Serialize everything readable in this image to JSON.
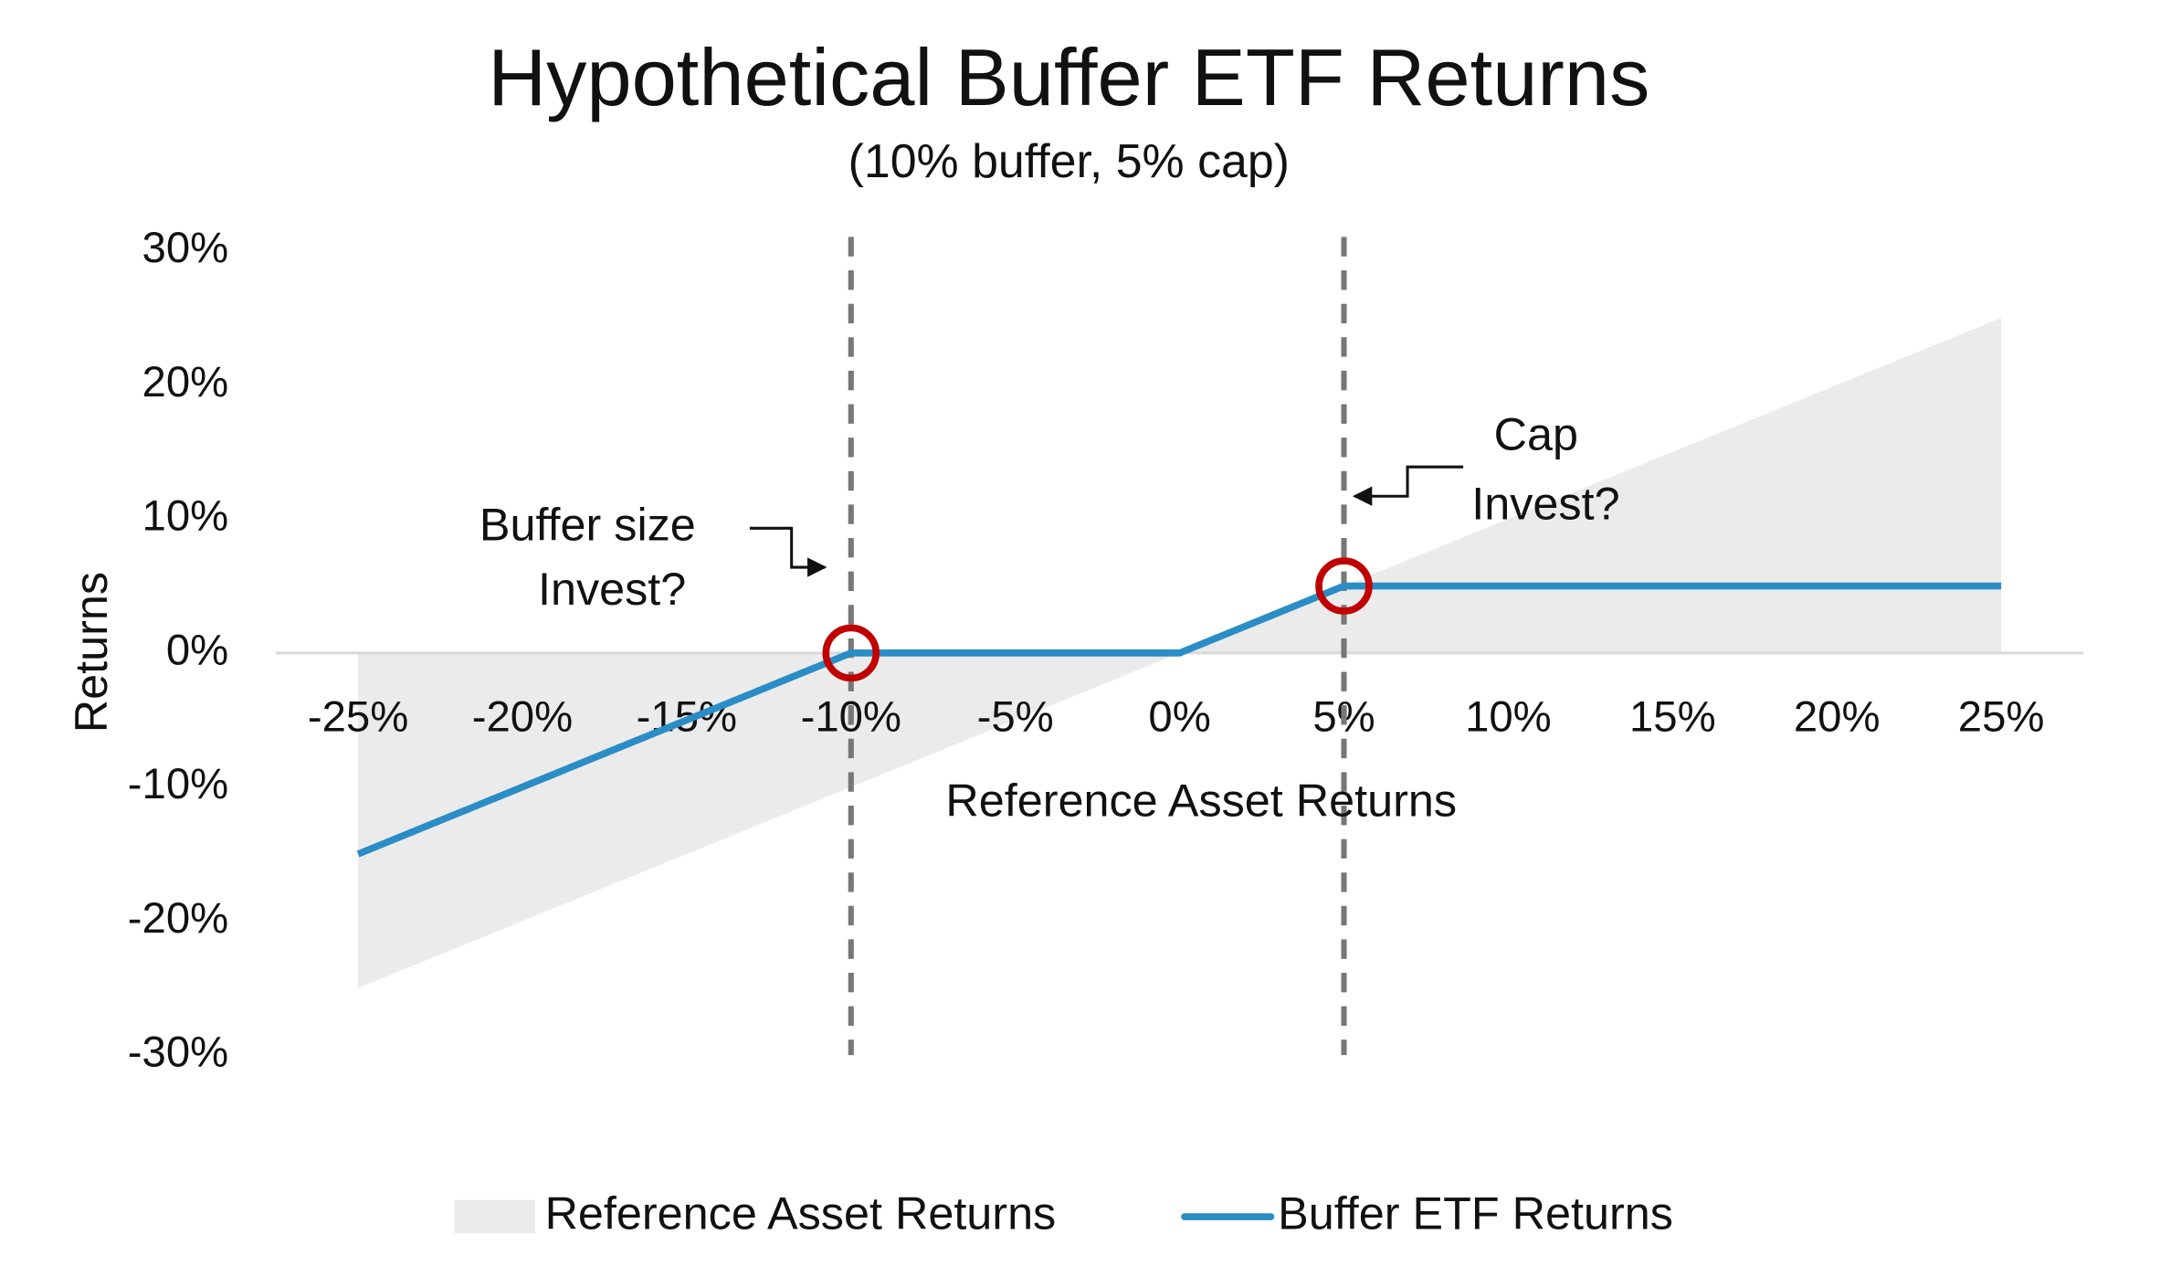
{
  "chart_data": {
    "type": "line",
    "title": "Hypothetical Buffer ETF Returns",
    "subtitle": "(10% buffer, 5% cap)",
    "x_label": "Reference Asset Returns",
    "y_label": "Returns",
    "x": [
      -25,
      -10,
      0,
      5,
      25
    ],
    "series": [
      {
        "name": "Reference Asset Returns",
        "kind": "area",
        "color": "#ebebeb",
        "values": [
          -25,
          -10,
          0,
          5,
          25
        ]
      },
      {
        "name": "Buffer ETF Returns",
        "kind": "line",
        "color": "#2a8dc5",
        "values": [
          -15,
          0,
          0,
          5,
          5
        ]
      }
    ],
    "xlim": [
      -27.5,
      27.5
    ],
    "ylim": [
      -30,
      30
    ],
    "xticks": [
      {
        "value": -25,
        "label": "-25%"
      },
      {
        "value": -20,
        "label": "-20%"
      },
      {
        "value": -15,
        "label": "-15%"
      },
      {
        "value": -10,
        "label": "-10%"
      },
      {
        "value": -5,
        "label": "-5%"
      },
      {
        "value": 0,
        "label": "0%"
      },
      {
        "value": 5,
        "label": "5%"
      },
      {
        "value": 10,
        "label": "10%"
      },
      {
        "value": 15,
        "label": "15%"
      },
      {
        "value": 20,
        "label": "20%"
      },
      {
        "value": 25,
        "label": "25%"
      }
    ],
    "yticks": [
      {
        "value": -30,
        "label": "-30%"
      },
      {
        "value": -20,
        "label": "-20%"
      },
      {
        "value": -10,
        "label": "-10%"
      },
      {
        "value": 0,
        "label": "0%"
      },
      {
        "value": 10,
        "label": "10%"
      },
      {
        "value": 20,
        "label": "20%"
      },
      {
        "value": 30,
        "label": "30%"
      }
    ],
    "reference_lines": [
      -10,
      5
    ],
    "highlight_points": [
      {
        "x": -10,
        "y": 0
      },
      {
        "x": 5,
        "y": 5
      }
    ],
    "highlight_color": "#c00000",
    "annotations": [
      {
        "text": "Buffer size",
        "color": "#111111"
      },
      {
        "text": "Invest?",
        "color": "#1aa64a"
      },
      {
        "text": "Cap",
        "color": "#111111"
      },
      {
        "text": "Invest?",
        "color": "#1aa64a"
      }
    ],
    "legend": "bottom"
  }
}
